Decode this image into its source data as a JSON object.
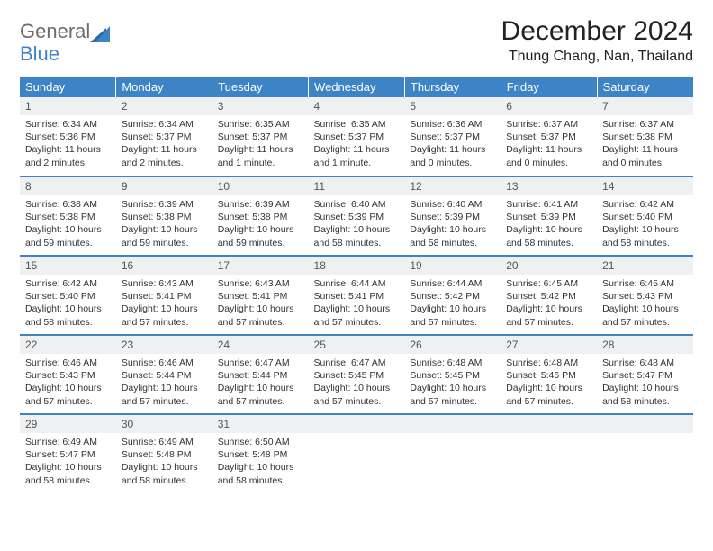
{
  "brand": {
    "name_gray": "General",
    "name_blue": "Blue"
  },
  "title": "December 2024",
  "location": "Thung Chang, Nan, Thailand",
  "colors": {
    "header_bg": "#3d84c6",
    "header_text": "#ffffff",
    "daynum_bg": "#eef0f1",
    "row_divider": "#3d84c6",
    "logo_gray": "#6d6d6d",
    "logo_blue": "#3d84c6",
    "body_text": "#333333"
  },
  "weekdays": [
    "Sunday",
    "Monday",
    "Tuesday",
    "Wednesday",
    "Thursday",
    "Friday",
    "Saturday"
  ],
  "weeks": [
    [
      {
        "n": "1",
        "sunrise": "Sunrise: 6:34 AM",
        "sunset": "Sunset: 5:36 PM",
        "daylight": "Daylight: 11 hours and 2 minutes."
      },
      {
        "n": "2",
        "sunrise": "Sunrise: 6:34 AM",
        "sunset": "Sunset: 5:37 PM",
        "daylight": "Daylight: 11 hours and 2 minutes."
      },
      {
        "n": "3",
        "sunrise": "Sunrise: 6:35 AM",
        "sunset": "Sunset: 5:37 PM",
        "daylight": "Daylight: 11 hours and 1 minute."
      },
      {
        "n": "4",
        "sunrise": "Sunrise: 6:35 AM",
        "sunset": "Sunset: 5:37 PM",
        "daylight": "Daylight: 11 hours and 1 minute."
      },
      {
        "n": "5",
        "sunrise": "Sunrise: 6:36 AM",
        "sunset": "Sunset: 5:37 PM",
        "daylight": "Daylight: 11 hours and 0 minutes."
      },
      {
        "n": "6",
        "sunrise": "Sunrise: 6:37 AM",
        "sunset": "Sunset: 5:37 PM",
        "daylight": "Daylight: 11 hours and 0 minutes."
      },
      {
        "n": "7",
        "sunrise": "Sunrise: 6:37 AM",
        "sunset": "Sunset: 5:38 PM",
        "daylight": "Daylight: 11 hours and 0 minutes."
      }
    ],
    [
      {
        "n": "8",
        "sunrise": "Sunrise: 6:38 AM",
        "sunset": "Sunset: 5:38 PM",
        "daylight": "Daylight: 10 hours and 59 minutes."
      },
      {
        "n": "9",
        "sunrise": "Sunrise: 6:39 AM",
        "sunset": "Sunset: 5:38 PM",
        "daylight": "Daylight: 10 hours and 59 minutes."
      },
      {
        "n": "10",
        "sunrise": "Sunrise: 6:39 AM",
        "sunset": "Sunset: 5:38 PM",
        "daylight": "Daylight: 10 hours and 59 minutes."
      },
      {
        "n": "11",
        "sunrise": "Sunrise: 6:40 AM",
        "sunset": "Sunset: 5:39 PM",
        "daylight": "Daylight: 10 hours and 58 minutes."
      },
      {
        "n": "12",
        "sunrise": "Sunrise: 6:40 AM",
        "sunset": "Sunset: 5:39 PM",
        "daylight": "Daylight: 10 hours and 58 minutes."
      },
      {
        "n": "13",
        "sunrise": "Sunrise: 6:41 AM",
        "sunset": "Sunset: 5:39 PM",
        "daylight": "Daylight: 10 hours and 58 minutes."
      },
      {
        "n": "14",
        "sunrise": "Sunrise: 6:42 AM",
        "sunset": "Sunset: 5:40 PM",
        "daylight": "Daylight: 10 hours and 58 minutes."
      }
    ],
    [
      {
        "n": "15",
        "sunrise": "Sunrise: 6:42 AM",
        "sunset": "Sunset: 5:40 PM",
        "daylight": "Daylight: 10 hours and 58 minutes."
      },
      {
        "n": "16",
        "sunrise": "Sunrise: 6:43 AM",
        "sunset": "Sunset: 5:41 PM",
        "daylight": "Daylight: 10 hours and 57 minutes."
      },
      {
        "n": "17",
        "sunrise": "Sunrise: 6:43 AM",
        "sunset": "Sunset: 5:41 PM",
        "daylight": "Daylight: 10 hours and 57 minutes."
      },
      {
        "n": "18",
        "sunrise": "Sunrise: 6:44 AM",
        "sunset": "Sunset: 5:41 PM",
        "daylight": "Daylight: 10 hours and 57 minutes."
      },
      {
        "n": "19",
        "sunrise": "Sunrise: 6:44 AM",
        "sunset": "Sunset: 5:42 PM",
        "daylight": "Daylight: 10 hours and 57 minutes."
      },
      {
        "n": "20",
        "sunrise": "Sunrise: 6:45 AM",
        "sunset": "Sunset: 5:42 PM",
        "daylight": "Daylight: 10 hours and 57 minutes."
      },
      {
        "n": "21",
        "sunrise": "Sunrise: 6:45 AM",
        "sunset": "Sunset: 5:43 PM",
        "daylight": "Daylight: 10 hours and 57 minutes."
      }
    ],
    [
      {
        "n": "22",
        "sunrise": "Sunrise: 6:46 AM",
        "sunset": "Sunset: 5:43 PM",
        "daylight": "Daylight: 10 hours and 57 minutes."
      },
      {
        "n": "23",
        "sunrise": "Sunrise: 6:46 AM",
        "sunset": "Sunset: 5:44 PM",
        "daylight": "Daylight: 10 hours and 57 minutes."
      },
      {
        "n": "24",
        "sunrise": "Sunrise: 6:47 AM",
        "sunset": "Sunset: 5:44 PM",
        "daylight": "Daylight: 10 hours and 57 minutes."
      },
      {
        "n": "25",
        "sunrise": "Sunrise: 6:47 AM",
        "sunset": "Sunset: 5:45 PM",
        "daylight": "Daylight: 10 hours and 57 minutes."
      },
      {
        "n": "26",
        "sunrise": "Sunrise: 6:48 AM",
        "sunset": "Sunset: 5:45 PM",
        "daylight": "Daylight: 10 hours and 57 minutes."
      },
      {
        "n": "27",
        "sunrise": "Sunrise: 6:48 AM",
        "sunset": "Sunset: 5:46 PM",
        "daylight": "Daylight: 10 hours and 57 minutes."
      },
      {
        "n": "28",
        "sunrise": "Sunrise: 6:48 AM",
        "sunset": "Sunset: 5:47 PM",
        "daylight": "Daylight: 10 hours and 58 minutes."
      }
    ],
    [
      {
        "n": "29",
        "sunrise": "Sunrise: 6:49 AM",
        "sunset": "Sunset: 5:47 PM",
        "daylight": "Daylight: 10 hours and 58 minutes."
      },
      {
        "n": "30",
        "sunrise": "Sunrise: 6:49 AM",
        "sunset": "Sunset: 5:48 PM",
        "daylight": "Daylight: 10 hours and 58 minutes."
      },
      {
        "n": "31",
        "sunrise": "Sunrise: 6:50 AM",
        "sunset": "Sunset: 5:48 PM",
        "daylight": "Daylight: 10 hours and 58 minutes."
      },
      null,
      null,
      null,
      null
    ]
  ]
}
